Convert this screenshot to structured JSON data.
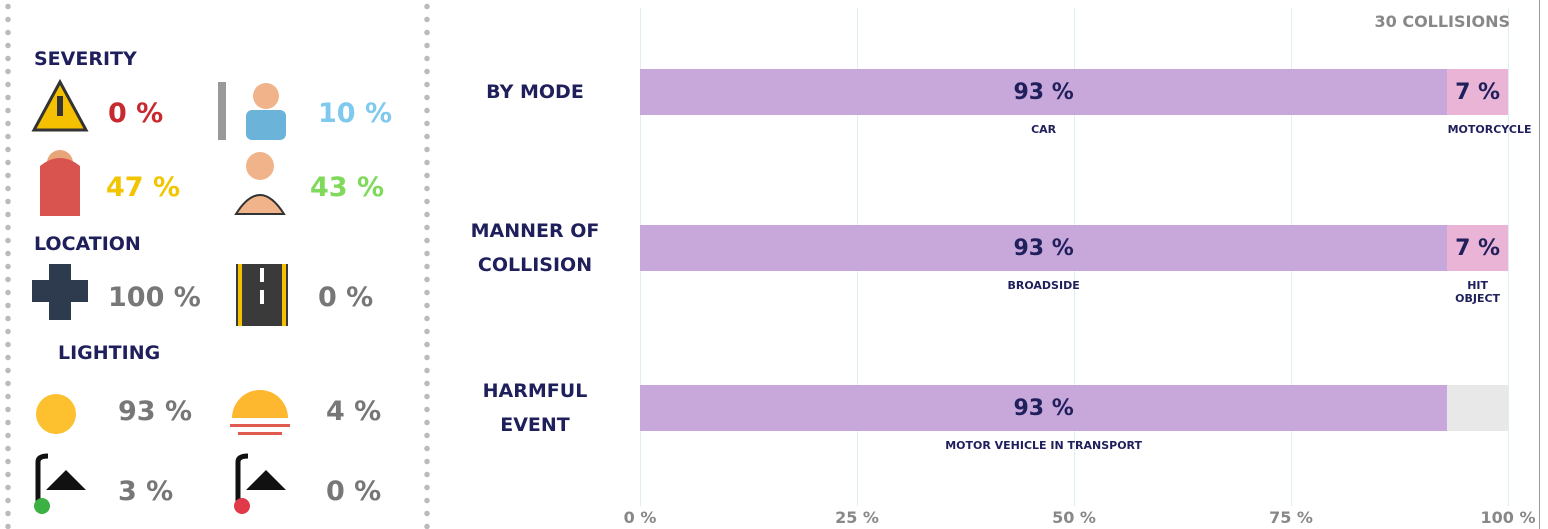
{
  "severity": {
    "title": "SEVERITY",
    "items": [
      {
        "value": "0 %",
        "color": "#c62a2f"
      },
      {
        "value": "10 %",
        "color": "#7fc9ef"
      },
      {
        "value": "47 %",
        "color": "#f2c500"
      },
      {
        "value": "43 %",
        "color": "#7fd95a"
      }
    ]
  },
  "location": {
    "title": "LOCATION",
    "items": [
      {
        "value": "100 %",
        "color": "#777777"
      },
      {
        "value": "0 %",
        "color": "#777777"
      }
    ]
  },
  "lighting": {
    "title": "LIGHTING",
    "items": [
      {
        "value": "93 %",
        "color": "#777777"
      },
      {
        "value": "4 %",
        "color": "#777777"
      },
      {
        "value": "3 %",
        "color": "#777777"
      },
      {
        "value": "0 %",
        "color": "#777777"
      }
    ]
  },
  "chart_data": {
    "type": "bar",
    "orientation": "horizontal",
    "stacked": true,
    "annotation": "30 COLLISIONS",
    "groups": [
      {
        "label": "BY MODE",
        "segments": [
          {
            "name": "CAR",
            "value": 93,
            "value_label": "93 %",
            "color": "#c8a7da"
          },
          {
            "name": "MOTORCYCLE",
            "value": 7,
            "value_label": "7 %",
            "color": "#eab4d7"
          }
        ]
      },
      {
        "label": "MANNER OF COLLISION",
        "segments": [
          {
            "name": "BROADSIDE",
            "value": 93,
            "value_label": "93 %",
            "color": "#c8a7da"
          },
          {
            "name": "HIT OBJECT",
            "value": 7,
            "value_label": "7 %",
            "color": "#eab4d7"
          }
        ]
      },
      {
        "label": "HARMFUL EVENT",
        "segments": [
          {
            "name": "MOTOR VEHICLE IN TRANSPORT",
            "value": 93,
            "value_label": "93 %",
            "color": "#c8a7da"
          }
        ]
      }
    ],
    "xlim": [
      0,
      100
    ],
    "xticks": [
      {
        "value": 0,
        "label": "0 %"
      },
      {
        "value": 25,
        "label": "25 %"
      },
      {
        "value": 50,
        "label": "50 %"
      },
      {
        "value": 75,
        "label": "75 %"
      },
      {
        "value": 100,
        "label": "100 %"
      }
    ],
    "grid": true
  }
}
